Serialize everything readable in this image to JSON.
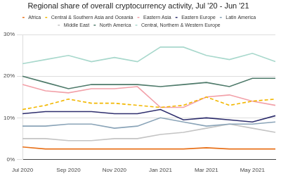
{
  "chart_data": {
    "type": "line",
    "title": "Regional share of overall cryptocurrency activity, Jul '20 - Jun '21",
    "categories": [
      "Jul 2020",
      null,
      "Sep 2020",
      null,
      "Nov 2020",
      null,
      "Jan 2021",
      null,
      "Mar 2021",
      null,
      "May 2021",
      null
    ],
    "series": [
      {
        "name": "Africa",
        "color": "#e8711a",
        "values": [
          3,
          2.5,
          2.5,
          2.5,
          2.5,
          2.5,
          2.5,
          2.5,
          2.8,
          2.5,
          2.5,
          2.5
        ]
      },
      {
        "name": "Central & Southern Asia and Oceania",
        "color": "#f2b701",
        "line_style": "dashed",
        "values": [
          12,
          13,
          14.5,
          13.5,
          13.5,
          13,
          12.5,
          13,
          15,
          13,
          14,
          14.5
        ]
      },
      {
        "name": "Eastern Asia",
        "color": "#f2a0a8",
        "values": [
          18,
          16.5,
          16,
          17,
          17,
          17.5,
          12.5,
          12.5,
          15,
          15.5,
          14,
          13
        ]
      },
      {
        "name": "Eastern Europe",
        "color": "#2f2f6e",
        "values": [
          11,
          11.5,
          11.5,
          11.5,
          11,
          11,
          12,
          9.5,
          10,
          9.5,
          9,
          10.5
        ]
      },
      {
        "name": "Latin America",
        "color": "#8aa4b8",
        "values": [
          8,
          8,
          8.5,
          8.5,
          7.5,
          8,
          10,
          9,
          8,
          8.5,
          8.5,
          9
        ]
      },
      {
        "name": "Middle East",
        "color": "#c4c4c4",
        "values": [
          5,
          5,
          4.5,
          4.5,
          5,
          5,
          6,
          6.5,
          7.5,
          8.5,
          7.5,
          6.5
        ]
      },
      {
        "name": "North America",
        "color": "#4e7a6a",
        "values": [
          20,
          18.5,
          17,
          18,
          18,
          18,
          17.5,
          18,
          18.5,
          17.5,
          19.5,
          19.5
        ]
      },
      {
        "name": "Central, Northern & Western Europe",
        "color": "#a8d8cc",
        "values": [
          23,
          24,
          25,
          23.5,
          24.5,
          23.5,
          27,
          27,
          25,
          24,
          25.5,
          23.5
        ]
      }
    ],
    "ylim": [
      0,
      30
    ],
    "yticks": [
      {
        "value": 0,
        "label": "0%"
      },
      {
        "value": 10,
        "label": "10%"
      },
      {
        "value": 20,
        "label": "20%"
      },
      {
        "value": 30,
        "label": "30%"
      }
    ],
    "grid": true,
    "legend": "top"
  }
}
